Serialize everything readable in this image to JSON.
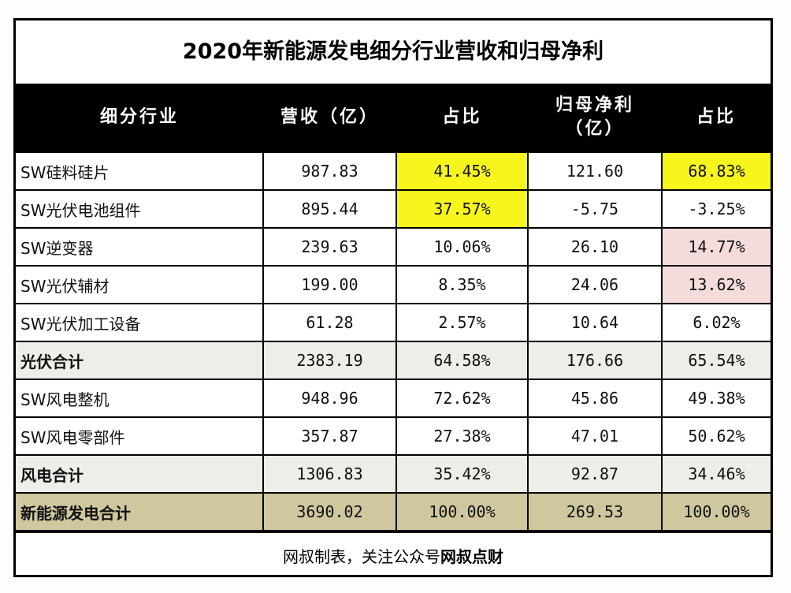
{
  "title": "2020年新能源发电细分行业营收和归母净利",
  "headers": [
    "细分行业",
    "营收（亿）",
    "占比",
    "归母净利\n（亿）",
    "占比"
  ],
  "colors": {
    "highlight_yellow": "#f7f51e",
    "highlight_pink": "#f5dcdc",
    "subtotal": "#efede8",
    "total": "#cfc79e",
    "header": "#000000"
  },
  "rows": [
    {
      "type": "item",
      "cells": [
        "SW硅料硅片",
        "987.83",
        "41.45%",
        "121.60",
        "68.83%"
      ],
      "highlight": [
        null,
        null,
        "yellow",
        null,
        "yellow"
      ]
    },
    {
      "type": "item",
      "cells": [
        "SW光伏电池组件",
        "895.44",
        "37.57%",
        "-5.75",
        "-3.25%"
      ],
      "highlight": [
        null,
        null,
        "yellow",
        null,
        null
      ]
    },
    {
      "type": "item",
      "cells": [
        "SW逆变器",
        "239.63",
        "10.06%",
        "26.10",
        "14.77%"
      ],
      "highlight": [
        null,
        null,
        null,
        null,
        "pink"
      ]
    },
    {
      "type": "item",
      "cells": [
        "SW光伏辅材",
        "199.00",
        "8.35%",
        "24.06",
        "13.62%"
      ],
      "highlight": [
        null,
        null,
        null,
        null,
        "pink"
      ]
    },
    {
      "type": "item",
      "cells": [
        "SW光伏加工设备",
        "61.28",
        "2.57%",
        "10.64",
        "6.02%"
      ],
      "highlight": [
        null,
        null,
        null,
        null,
        null
      ]
    },
    {
      "type": "sub",
      "cells": [
        "光伏合计",
        "2383.19",
        "64.58%",
        "176.66",
        "65.54%"
      ],
      "highlight": [
        null,
        null,
        null,
        null,
        null
      ]
    },
    {
      "type": "item",
      "cells": [
        "SW风电整机",
        "948.96",
        "72.62%",
        "45.86",
        "49.38%"
      ],
      "highlight": [
        null,
        null,
        null,
        null,
        null
      ]
    },
    {
      "type": "item",
      "cells": [
        "SW风电零部件",
        "357.87",
        "27.38%",
        "47.01",
        "50.62%"
      ],
      "highlight": [
        null,
        null,
        null,
        null,
        null
      ]
    },
    {
      "type": "sub",
      "cells": [
        "风电合计",
        "1306.83",
        "35.42%",
        "92.87",
        "34.46%"
      ],
      "highlight": [
        null,
        null,
        null,
        null,
        null
      ]
    },
    {
      "type": "total",
      "cells": [
        "新能源发电合计",
        "3690.02",
        "100.00%",
        "269.53",
        "100.00%"
      ],
      "highlight": [
        null,
        null,
        null,
        null,
        null
      ]
    }
  ],
  "footer": {
    "prefix": "网叔制表，关注公众号",
    "brand": "网叔点财"
  }
}
